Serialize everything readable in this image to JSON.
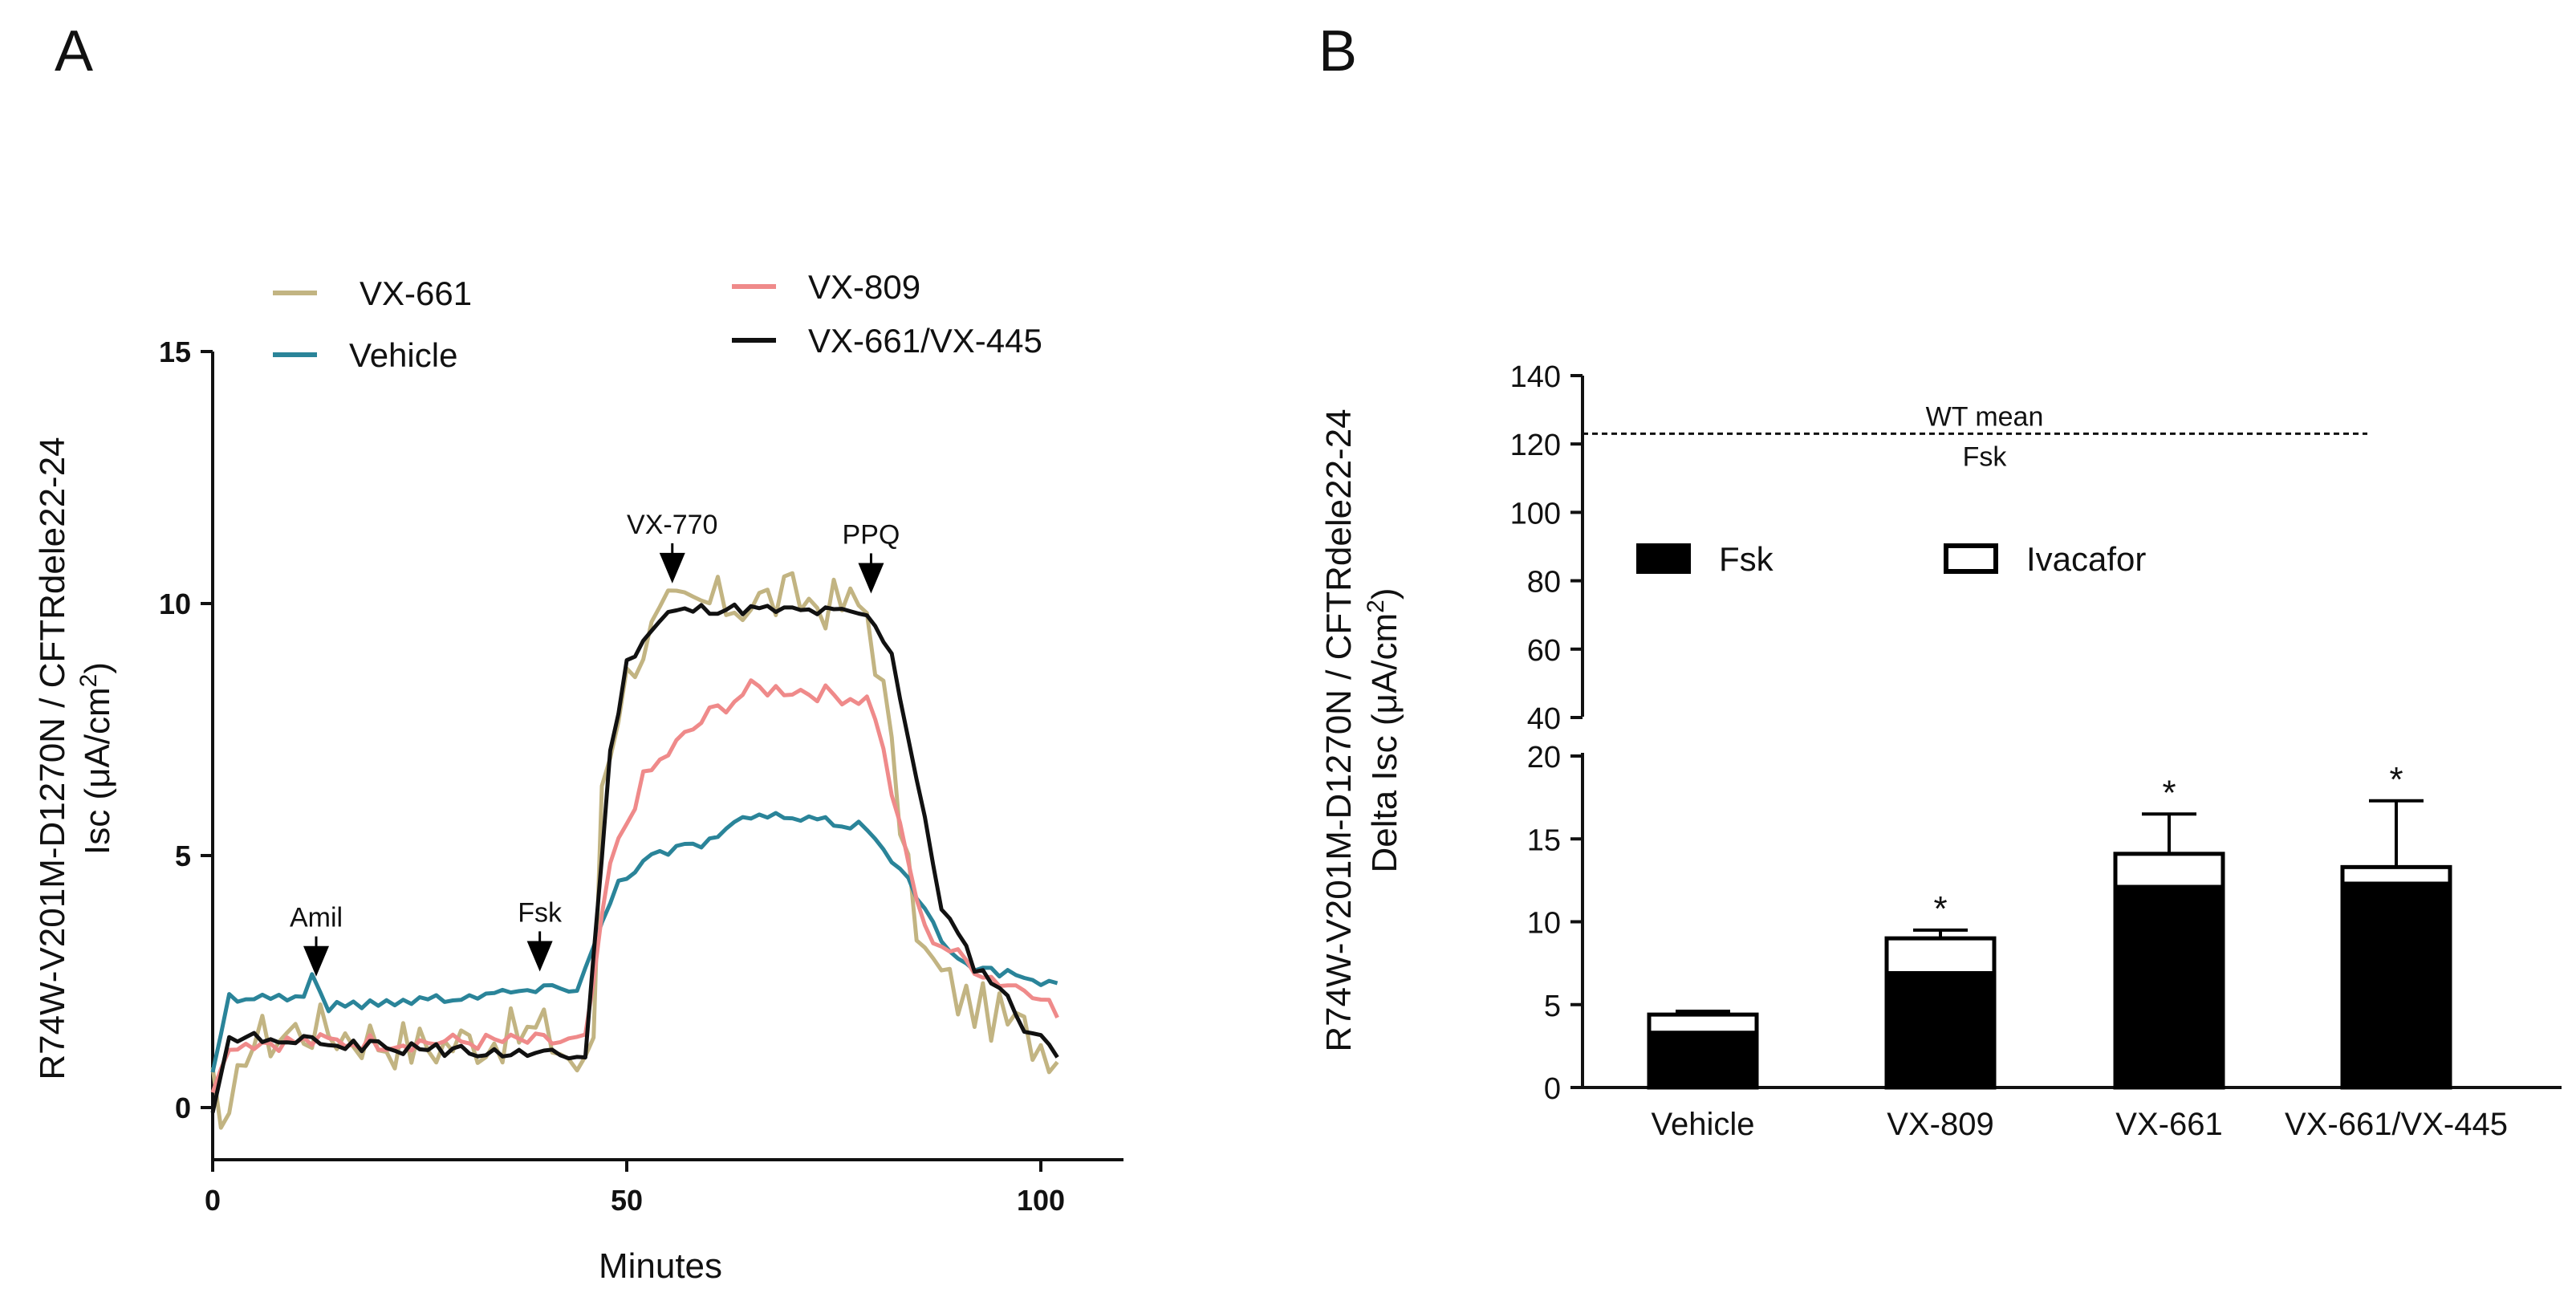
{
  "panels": {
    "a_label": "A",
    "b_label": "B"
  },
  "chart_data": [
    {
      "type": "line",
      "panel": "A",
      "xlabel": "Minutes",
      "ylabel_line1": "R74W-V201M-D1270N / CFTRdele22-24",
      "ylabel_line2_prefix": "Isc (μA/cm",
      "ylabel_line2_sup": "2",
      "ylabel_line2_suffix": ")",
      "xlim": [
        0,
        110
      ],
      "ylim": [
        -1,
        15
      ],
      "xticks": [
        0,
        50,
        100
      ],
      "yticks": [
        0,
        5,
        10,
        15
      ],
      "legend": [
        {
          "name": "VX-661",
          "color": "#c2b482"
        },
        {
          "name": "Vehicle",
          "color": "#2a8499"
        },
        {
          "name": "VX-809",
          "color": "#ef8a8a"
        },
        {
          "name": "VX-661/VX-445",
          "color": "#111111"
        }
      ],
      "annotations": [
        {
          "label": "Amil",
          "x": 12.5,
          "y": 2.6
        },
        {
          "label": "Fsk",
          "x": 39.5,
          "y": 2.7
        },
        {
          "label": "VX-770",
          "x": 55.5,
          "y": 10.4
        },
        {
          "label": "PPQ",
          "x": 79.5,
          "y": 10.2
        }
      ],
      "series": [
        {
          "name": "VX-661",
          "color": "#c2b482",
          "keypoints": [
            [
              0,
              0.8
            ],
            [
              1.5,
              -1.0
            ],
            [
              4,
              1.3
            ],
            [
              12,
              1.6
            ],
            [
              25,
              1.2
            ],
            [
              40,
              1.5
            ],
            [
              45,
              0.7
            ],
            [
              46,
              1.5
            ],
            [
              47,
              6.5
            ],
            [
              49,
              8.0
            ],
            [
              51,
              9.0
            ],
            [
              55,
              9.8
            ],
            [
              60,
              10.0
            ],
            [
              70,
              10.1
            ],
            [
              79,
              9.9
            ],
            [
              81,
              8.2
            ],
            [
              84,
              4.5
            ],
            [
              86,
              3.0
            ],
            [
              90,
              2.2
            ],
            [
              100,
              1.3
            ],
            [
              102,
              1.2
            ]
          ],
          "noise": 0.55
        },
        {
          "name": "Vehicle",
          "color": "#2a8499",
          "keypoints": [
            [
              0,
              0.7
            ],
            [
              2,
              2.2
            ],
            [
              11,
              2.2
            ],
            [
              12,
              2.6
            ],
            [
              14,
              2.0
            ],
            [
              44,
              2.4
            ],
            [
              46,
              3.2
            ],
            [
              49,
              4.5
            ],
            [
              53,
              5.0
            ],
            [
              60,
              5.3
            ],
            [
              65,
              5.8
            ],
            [
              78,
              5.6
            ],
            [
              80,
              5.4
            ],
            [
              84,
              4.5
            ],
            [
              88,
              3.3
            ],
            [
              92,
              2.8
            ],
            [
              102,
              2.4
            ]
          ],
          "noise": 0.1
        },
        {
          "name": "VX-809",
          "color": "#ef8a8a",
          "keypoints": [
            [
              0,
              0.3
            ],
            [
              1.5,
              1.0
            ],
            [
              3,
              1.3
            ],
            [
              40,
              1.3
            ],
            [
              45,
              1.3
            ],
            [
              46,
              2.5
            ],
            [
              48,
              4.8
            ],
            [
              52,
              6.5
            ],
            [
              56,
              7.2
            ],
            [
              60,
              7.8
            ],
            [
              65,
              8.3
            ],
            [
              70,
              8.3
            ],
            [
              79,
              8.1
            ],
            [
              80,
              7.8
            ],
            [
              83,
              5.5
            ],
            [
              86,
              3.5
            ],
            [
              90,
              3.0
            ],
            [
              95,
              2.5
            ],
            [
              100,
              2.3
            ],
            [
              102,
              1.8
            ]
          ],
          "noise": 0.18
        },
        {
          "name": "VX-661/VX-445",
          "color": "#111111",
          "keypoints": [
            [
              0,
              -0.1
            ],
            [
              2,
              1.4
            ],
            [
              20,
              1.2
            ],
            [
              45,
              1.0
            ],
            [
              46,
              3.0
            ],
            [
              48,
              7.0
            ],
            [
              50,
              8.8
            ],
            [
              52,
              9.3
            ],
            [
              55,
              9.8
            ],
            [
              60,
              9.9
            ],
            [
              78,
              9.8
            ],
            [
              80,
              9.6
            ],
            [
              82,
              9.0
            ],
            [
              85,
              6.5
            ],
            [
              88,
              4.0
            ],
            [
              92,
              2.8
            ],
            [
              95,
              2.4
            ],
            [
              98,
              1.6
            ],
            [
              102,
              1.1
            ]
          ],
          "noise": 0.12
        }
      ]
    },
    {
      "type": "bar",
      "panel": "B",
      "ylabel_line1": "R74W-V201M-D1270N / CFTRdele22-24",
      "ylabel_line2_prefix": "Delta Isc (μA/cm",
      "ylabel_line2_sup": "2",
      "ylabel_line2_suffix": ")",
      "categories": [
        "Vehicle",
        "VX-809",
        "VX-661",
        "VX-661/VX-445"
      ],
      "stacked": true,
      "series": [
        {
          "name": "Fsk",
          "values": [
            3.3,
            6.9,
            12.1,
            12.3
          ],
          "color": "#000000"
        },
        {
          "name": "Ivacafor",
          "values": [
            1.1,
            2.1,
            2.0,
            1.0
          ],
          "color": "#ffffff"
        }
      ],
      "error_bars": [
        0.2,
        0.5,
        2.4,
        4.0
      ],
      "significance": [
        "",
        "*",
        "*",
        "*"
      ],
      "ylim_lower": [
        0,
        20
      ],
      "ylim_upper": [
        40,
        140
      ],
      "yticks_lower": [
        0,
        5,
        10,
        15,
        20
      ],
      "yticks_upper": [
        40,
        60,
        80,
        100,
        120,
        140
      ],
      "reference_line": {
        "value": 123,
        "label_line1": "WT mean",
        "label_line2": "Fsk"
      }
    }
  ]
}
